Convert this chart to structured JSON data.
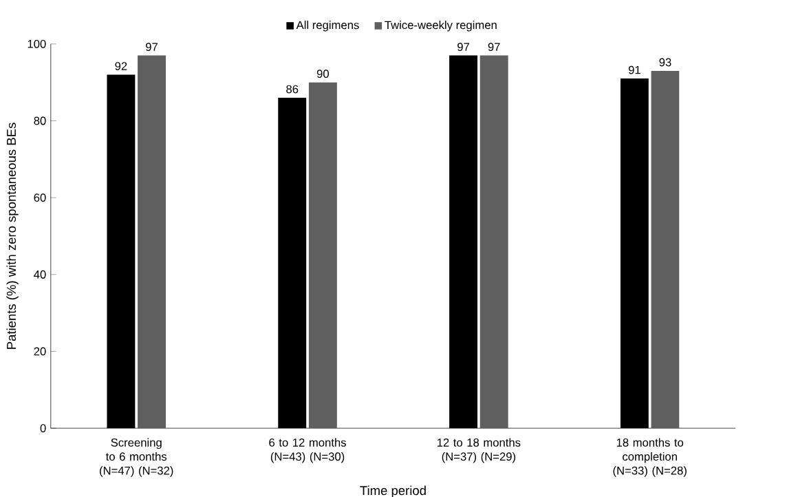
{
  "chart_data": {
    "type": "bar",
    "xlabel": "Time period",
    "ylabel": "Patients (%) with zero spontaneous BEs",
    "categories": [
      "Screening to 6 months (N=47) (N=32)",
      "6 to 12 months (N=43) (N=30)",
      "12 to 18 months (N=37) (N=29)",
      "18 months to completion (N=33) (N=28)"
    ],
    "series": [
      {
        "name": "All regimens",
        "color": "#000000",
        "values": [
          92,
          86,
          97,
          91
        ]
      },
      {
        "name": "Twice-weekly regimen",
        "color": "#5f5f5f",
        "values": [
          97,
          90,
          97,
          93
        ]
      }
    ],
    "ylim": [
      0,
      100
    ],
    "yticks": [
      0,
      20,
      40,
      60,
      80,
      100
    ],
    "data_labels": true,
    "legend": "top",
    "grid": false
  }
}
